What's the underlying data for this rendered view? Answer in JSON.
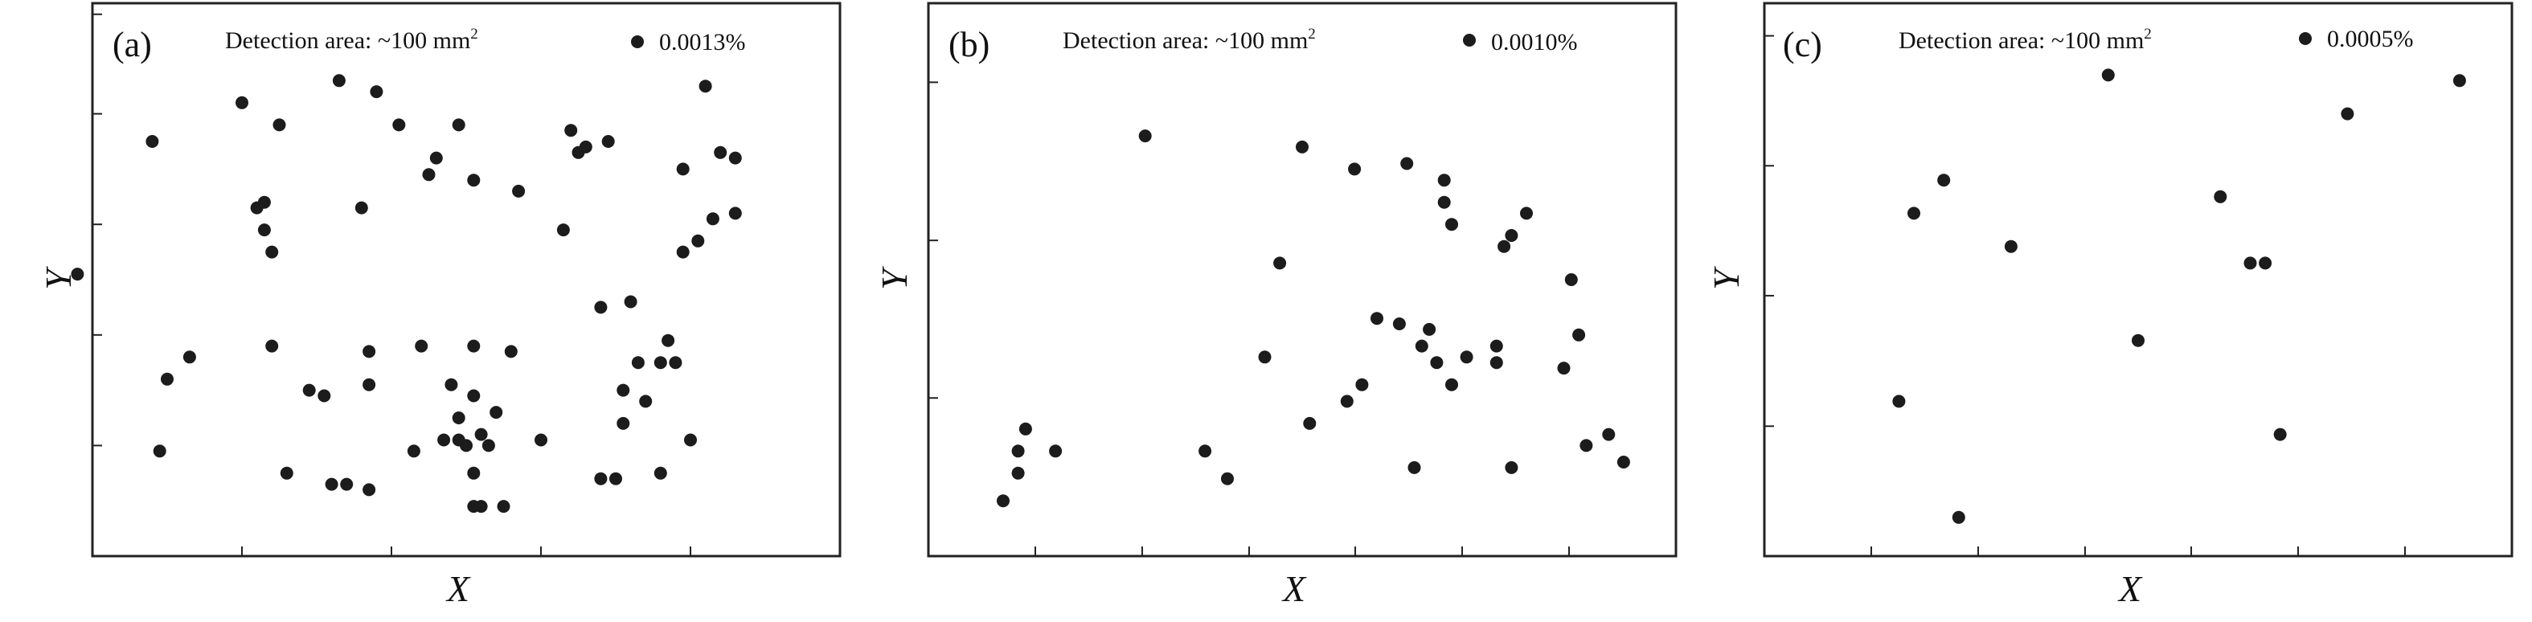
{
  "chart_data": [
    {
      "type": "scatter",
      "panel_label": "(a)",
      "annotation": "Detection area: ~100 mm",
      "annotation_sup": "2",
      "legend": "0.0013%",
      "xlabel": "X",
      "ylabel": "Y",
      "xlim": [
        0,
        100
      ],
      "ylim": [
        0,
        100
      ],
      "grid": false,
      "points": [
        [
          -2,
          51
        ],
        [
          8,
          75
        ],
        [
          9,
          19
        ],
        [
          10,
          32
        ],
        [
          13,
          36
        ],
        [
          20,
          82
        ],
        [
          22,
          63
        ],
        [
          23,
          64
        ],
        [
          23,
          59
        ],
        [
          24,
          38
        ],
        [
          24,
          55
        ],
        [
          25,
          78
        ],
        [
          26,
          15
        ],
        [
          29,
          30
        ],
        [
          31,
          29
        ],
        [
          32,
          13
        ],
        [
          33,
          86
        ],
        [
          34,
          13
        ],
        [
          36,
          63
        ],
        [
          37,
          31
        ],
        [
          37,
          12
        ],
        [
          37,
          37
        ],
        [
          38,
          84
        ],
        [
          41,
          78
        ],
        [
          43,
          19
        ],
        [
          44,
          38
        ],
        [
          45,
          69
        ],
        [
          46,
          72
        ],
        [
          47,
          21
        ],
        [
          48,
          31
        ],
        [
          49,
          78
        ],
        [
          49,
          25
        ],
        [
          49,
          21
        ],
        [
          50,
          20
        ],
        [
          51,
          68
        ],
        [
          51,
          15
        ],
        [
          51,
          38
        ],
        [
          51,
          29
        ],
        [
          51,
          9
        ],
        [
          52,
          22
        ],
        [
          52,
          9
        ],
        [
          53,
          20
        ],
        [
          54,
          26
        ],
        [
          55,
          9
        ],
        [
          56,
          37
        ],
        [
          57,
          66
        ],
        [
          60,
          21
        ],
        [
          63,
          59
        ],
        [
          64,
          77
        ],
        [
          65,
          73
        ],
        [
          66,
          74
        ],
        [
          68,
          14
        ],
        [
          68,
          45
        ],
        [
          69,
          75
        ],
        [
          70,
          14
        ],
        [
          71,
          30
        ],
        [
          71,
          24
        ],
        [
          72,
          46
        ],
        [
          73,
          35
        ],
        [
          74,
          28
        ],
        [
          76,
          15
        ],
        [
          76,
          35
        ],
        [
          77,
          39
        ],
        [
          78,
          35
        ],
        [
          79,
          70
        ],
        [
          79,
          55
        ],
        [
          80,
          21
        ],
        [
          81,
          57
        ],
        [
          82,
          85
        ],
        [
          83,
          61
        ],
        [
          84,
          73
        ],
        [
          86,
          72
        ],
        [
          86,
          62
        ]
      ]
    },
    {
      "type": "scatter",
      "panel_label": "(b)",
      "annotation": "Detection area: ~100 mm",
      "annotation_sup": "2",
      "legend": "0.0010%",
      "xlabel": "X",
      "ylabel": "Y",
      "xlim": [
        0,
        100
      ],
      "ylim": [
        0,
        100
      ],
      "grid": false,
      "points": [
        [
          10,
          10
        ],
        [
          12,
          19
        ],
        [
          12,
          15
        ],
        [
          13,
          23
        ],
        [
          17,
          19
        ],
        [
          29,
          76
        ],
        [
          37,
          19
        ],
        [
          40,
          14
        ],
        [
          45,
          36
        ],
        [
          47,
          53
        ],
        [
          50,
          74
        ],
        [
          51,
          24
        ],
        [
          56,
          28
        ],
        [
          57,
          70
        ],
        [
          58,
          31
        ],
        [
          60,
          43
        ],
        [
          63,
          42
        ],
        [
          64,
          71
        ],
        [
          65,
          16
        ],
        [
          66,
          38
        ],
        [
          67,
          41
        ],
        [
          68,
          35
        ],
        [
          69,
          68
        ],
        [
          69,
          64
        ],
        [
          70,
          60
        ],
        [
          70,
          31
        ],
        [
          72,
          36
        ],
        [
          76,
          35
        ],
        [
          76,
          38
        ],
        [
          77,
          56
        ],
        [
          78,
          58
        ],
        [
          78,
          16
        ],
        [
          80,
          62
        ],
        [
          85,
          34
        ],
        [
          86,
          50
        ],
        [
          87,
          40
        ],
        [
          88,
          20
        ],
        [
          91,
          22
        ],
        [
          93,
          17
        ]
      ]
    },
    {
      "type": "scatter",
      "panel_label": "(c)",
      "annotation": "Detection area: ~100 mm",
      "annotation_sup": "2",
      "legend": "0.0005%",
      "xlabel": "X",
      "ylabel": "Y",
      "xlim": [
        0,
        100
      ],
      "ylim": [
        0,
        100
      ],
      "grid": false,
      "points": [
        [
          18,
          28
        ],
        [
          20,
          62
        ],
        [
          24,
          68
        ],
        [
          26,
          7
        ],
        [
          33,
          56
        ],
        [
          46,
          87
        ],
        [
          50,
          39
        ],
        [
          61,
          65
        ],
        [
          65,
          53
        ],
        [
          67,
          53
        ],
        [
          69,
          22
        ],
        [
          78,
          80
        ],
        [
          93,
          86
        ]
      ]
    }
  ]
}
